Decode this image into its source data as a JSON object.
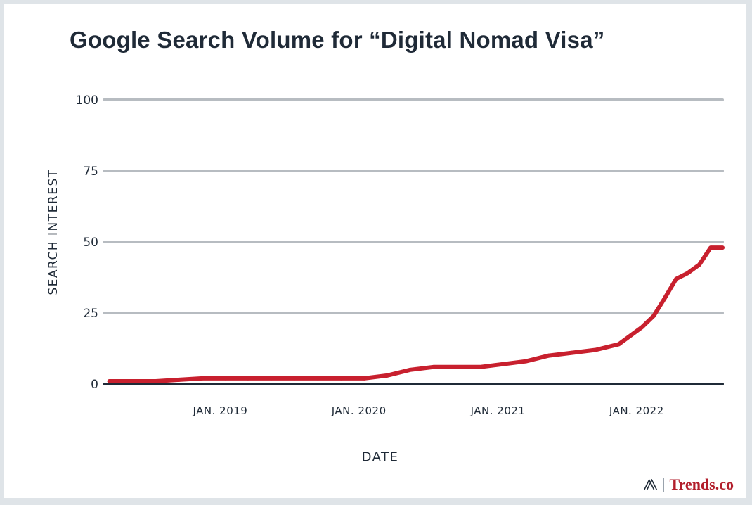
{
  "brand": {
    "icon": "hubspot-sprocket-icon",
    "text": "Trends.co"
  },
  "colors": {
    "line": "#c8202e",
    "grid": "#b7bcc1",
    "axis": "#1f2a37",
    "text": "#1f2a37"
  },
  "chart_data": {
    "type": "line",
    "title": "Google Search Volume for “Digital Nomad Visa”",
    "xlabel": "DATE",
    "ylabel": "SEARCH INTEREST",
    "ylim": [
      0,
      100
    ],
    "yticks": [
      0,
      25,
      50,
      75,
      100
    ],
    "ytick_labels": [
      "0",
      "25",
      "50",
      "75",
      "100"
    ],
    "xlim": [
      "2018-03-01",
      "2022-08-15"
    ],
    "xticks": [
      "2019-01-01",
      "2020-01-01",
      "2021-01-01",
      "2022-01-01"
    ],
    "xtick_labels": [
      "JAN. 2019",
      "JAN. 2020",
      "JAN. 2021",
      "JAN. 2022"
    ],
    "grid": true,
    "series": [
      {
        "x": [
          "2018-03",
          "2018-05",
          "2018-07",
          "2018-09",
          "2018-11",
          "2019-01",
          "2019-03",
          "2019-05",
          "2019-07",
          "2019-09",
          "2019-11",
          "2020-01",
          "2020-03",
          "2020-05",
          "2020-07",
          "2020-09",
          "2020-11",
          "2021-01",
          "2021-03",
          "2021-05",
          "2021-07",
          "2021-09",
          "2021-11",
          "2022-01",
          "2022-02",
          "2022-03",
          "2022-04",
          "2022-05",
          "2022-06",
          "2022-07",
          "2022-08"
        ],
        "values": [
          1,
          1,
          1,
          1.5,
          2,
          2,
          2,
          2,
          2,
          2,
          2,
          2,
          3,
          5,
          6,
          6,
          6,
          7,
          8,
          10,
          11,
          12,
          14,
          20,
          24,
          30,
          37,
          39,
          42,
          48,
          48
        ]
      }
    ]
  }
}
